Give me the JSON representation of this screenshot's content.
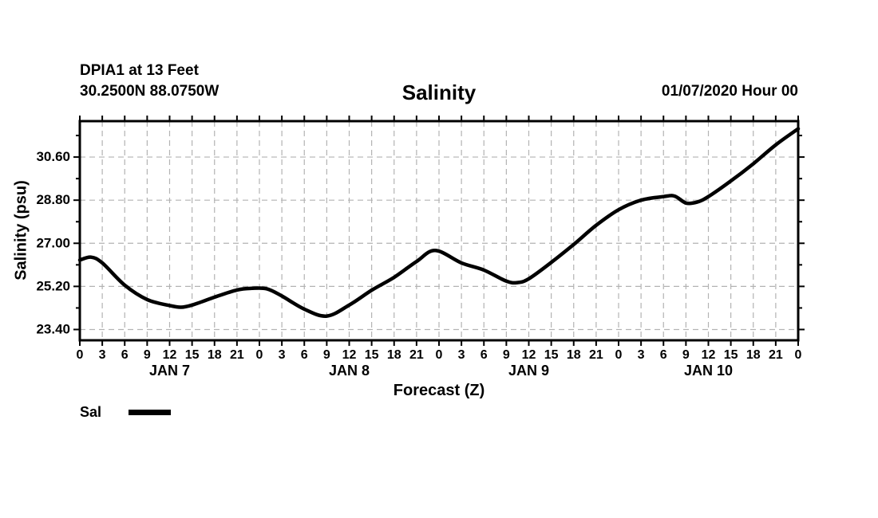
{
  "header": {
    "station_line1": "DPIA1 at 13 Feet",
    "station_line2": "30.2500N 88.0750W",
    "title": "Salinity",
    "datetime": "01/07/2020 Hour 00"
  },
  "legend": {
    "label": "Sal",
    "swatch_color": "#000000"
  },
  "colors": {
    "line": "#000000",
    "grid": "#b3b3b3",
    "frame": "#000000",
    "background": "#ffffff",
    "text": "#000000"
  },
  "chart_data": {
    "type": "line",
    "title": "Salinity",
    "xlabel": "Forecast (Z)",
    "ylabel": "Salinity (psu)",
    "grid": {
      "vertical": "dashed every 3 hours",
      "horizontal": "dashed at major y ticks"
    },
    "legend_position": "bottom-left",
    "x_axis": {
      "unit": "forecast hours",
      "range": [
        0,
        96
      ],
      "tick_interval": 3,
      "tick_labels": [
        "0",
        "3",
        "6",
        "9",
        "12",
        "15",
        "18",
        "21",
        "0",
        "3",
        "6",
        "9",
        "12",
        "15",
        "18",
        "21",
        "0",
        "3",
        "6",
        "9",
        "12",
        "15",
        "18",
        "21",
        "0",
        "3",
        "6",
        "9",
        "12",
        "15",
        "18",
        "21",
        "0"
      ],
      "day_labels": [
        {
          "label": "JAN 7",
          "center_hour": 12
        },
        {
          "label": "JAN 8",
          "center_hour": 36
        },
        {
          "label": "JAN 9",
          "center_hour": 60
        },
        {
          "label": "JAN 10",
          "center_hour": 84
        }
      ]
    },
    "y_axis": {
      "range": [
        22.95,
        32.1
      ],
      "major_ticks": [
        23.4,
        25.2,
        27.0,
        28.8,
        30.6
      ],
      "major_tick_labels": [
        "23.40",
        "25.20",
        "27.00",
        "28.80",
        "30.60"
      ],
      "minor_tick_interval": 0.9
    },
    "series": [
      {
        "name": "Sal",
        "points": [
          [
            0,
            26.3
          ],
          [
            1.5,
            26.42
          ],
          [
            3,
            26.18
          ],
          [
            6,
            25.25
          ],
          [
            9,
            24.65
          ],
          [
            12,
            24.4
          ],
          [
            13.5,
            24.33
          ],
          [
            15,
            24.42
          ],
          [
            18,
            24.75
          ],
          [
            21,
            25.05
          ],
          [
            23,
            25.12
          ],
          [
            25,
            25.1
          ],
          [
            27,
            24.8
          ],
          [
            30,
            24.25
          ],
          [
            33,
            23.96
          ],
          [
            36,
            24.42
          ],
          [
            39,
            25.04
          ],
          [
            42,
            25.58
          ],
          [
            45,
            26.24
          ],
          [
            47.5,
            26.7
          ],
          [
            51,
            26.18
          ],
          [
            54,
            25.88
          ],
          [
            57,
            25.42
          ],
          [
            58.5,
            25.36
          ],
          [
            60,
            25.52
          ],
          [
            63,
            26.2
          ],
          [
            66,
            26.95
          ],
          [
            69,
            27.75
          ],
          [
            72,
            28.4
          ],
          [
            75,
            28.8
          ],
          [
            78,
            28.95
          ],
          [
            79.5,
            28.97
          ],
          [
            81,
            28.68
          ],
          [
            82.5,
            28.72
          ],
          [
            84,
            28.95
          ],
          [
            87,
            29.6
          ],
          [
            90,
            30.32
          ],
          [
            93,
            31.11
          ],
          [
            96,
            31.78
          ]
        ]
      }
    ]
  }
}
